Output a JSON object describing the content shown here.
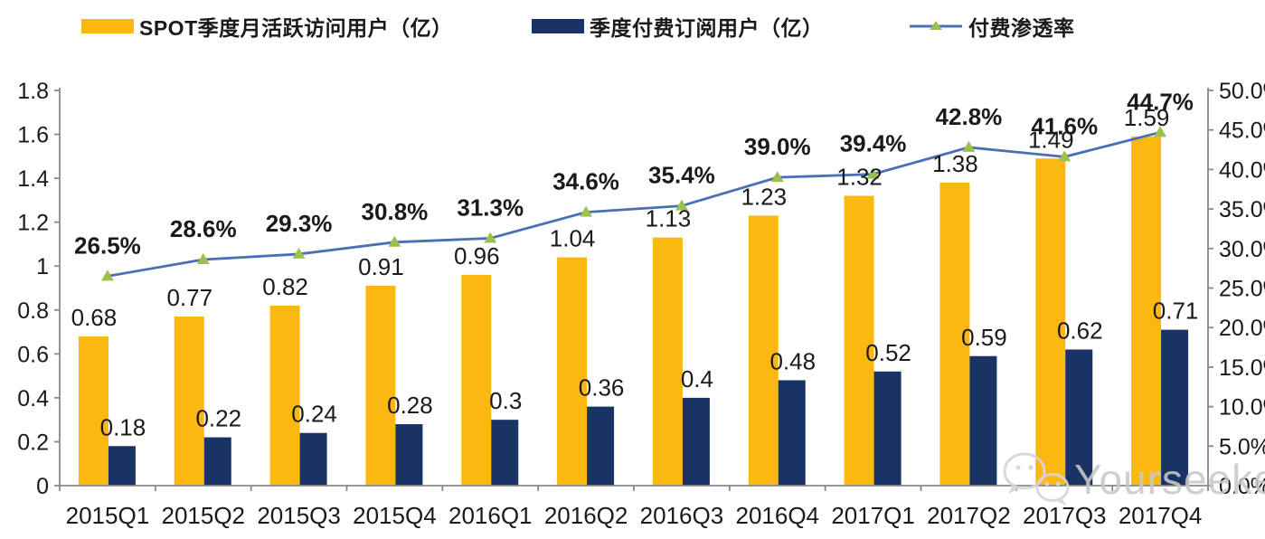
{
  "legend": {
    "items": [
      {
        "label": "SPOT季度月活跃访问用户（亿）",
        "color": "#FBB810",
        "type": "bar"
      },
      {
        "label": "季度付费订阅用户（亿）",
        "color": "#1A3365",
        "type": "bar"
      },
      {
        "label": "付费渗透率",
        "color": "#4A6FB5",
        "marker_color": "#9DC04D",
        "type": "line"
      }
    ]
  },
  "watermark": {
    "text": "Yourseeker",
    "icon": "wechat-icon"
  },
  "chart_data": {
    "type": "bar+line",
    "title": "",
    "categories": [
      "2015Q1",
      "2015Q2",
      "2015Q3",
      "2015Q4",
      "2016Q1",
      "2016Q2",
      "2016Q3",
      "2016Q4",
      "2017Q1",
      "2017Q2",
      "2017Q3",
      "2017Q4"
    ],
    "series": [
      {
        "name": "SPOT季度月活跃访问用户（亿）",
        "type": "bar",
        "axis": "left",
        "color": "#FBB810",
        "values": [
          0.68,
          0.77,
          0.82,
          0.91,
          0.96,
          1.04,
          1.13,
          1.23,
          1.32,
          1.38,
          1.49,
          1.59
        ],
        "labels": [
          "0.68",
          "0.77",
          "0.82",
          "0.91",
          "0.96",
          "1.04",
          "1.13",
          "1.23",
          "1.32",
          "1.38",
          "1.49",
          "1.59"
        ]
      },
      {
        "name": "季度付费订阅用户（亿）",
        "type": "bar",
        "axis": "left",
        "color": "#1A3365",
        "values": [
          0.18,
          0.22,
          0.24,
          0.28,
          0.3,
          0.36,
          0.4,
          0.48,
          0.52,
          0.59,
          0.62,
          0.71
        ],
        "labels": [
          "0.18",
          "0.22",
          "0.24",
          "0.28",
          "0.3",
          "0.36",
          "0.4",
          "0.48",
          "0.52",
          "0.59",
          "0.62",
          "0.71"
        ]
      },
      {
        "name": "付费渗透率",
        "type": "line",
        "axis": "right",
        "color": "#4A6FB5",
        "marker": "triangle",
        "marker_color": "#9DC04D",
        "values": [
          26.5,
          28.6,
          29.3,
          30.8,
          31.3,
          34.6,
          35.4,
          39.0,
          39.4,
          42.8,
          41.6,
          44.7
        ],
        "labels": [
          "26.5%",
          "28.6%",
          "29.3%",
          "30.8%",
          "31.3%",
          "34.6%",
          "35.4%",
          "39.0%",
          "39.4%",
          "42.8%",
          "41.6%",
          "44.7%"
        ]
      }
    ],
    "left_axis": {
      "min": 0,
      "max": 1.8,
      "step": 0.2,
      "ticks": [
        "0",
        "0.2",
        "0.4",
        "0.6",
        "0.8",
        "1",
        "1.2",
        "1.4",
        "1.6",
        "1.8"
      ]
    },
    "right_axis": {
      "min": 0,
      "max": 50,
      "step": 5,
      "ticks": [
        "0.0%",
        "5.0%",
        "10.0%",
        "15.0%",
        "20.0%",
        "25.0%",
        "30.0%",
        "35.0%",
        "40.0%",
        "45.0%",
        "50.0%"
      ]
    },
    "grid": false,
    "legend_position": "top"
  }
}
